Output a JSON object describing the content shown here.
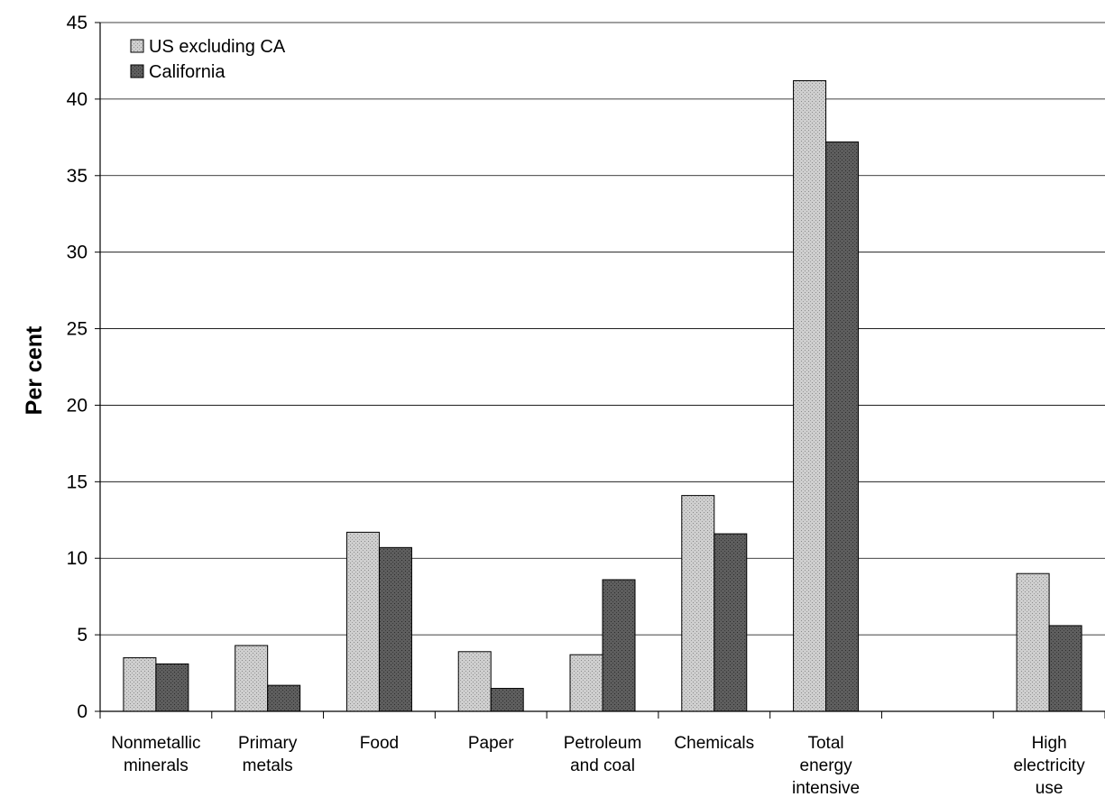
{
  "chart_data": {
    "type": "bar",
    "title": "",
    "xlabel": "",
    "ylabel": "Per cent",
    "ylim": [
      0,
      45
    ],
    "yticks": [
      0,
      5,
      10,
      15,
      20,
      25,
      30,
      35,
      40,
      45
    ],
    "grid": true,
    "legend_position": "top-left",
    "categories": [
      [
        "Nonmetallic",
        "minerals"
      ],
      [
        "Primary",
        "metals"
      ],
      [
        "Food"
      ],
      [
        "Paper"
      ],
      [
        "Petroleum",
        "and coal"
      ],
      [
        "Chemicals"
      ],
      [
        "Total",
        "energy",
        "intensive"
      ],
      [],
      [
        "High",
        "electricity",
        "use"
      ]
    ],
    "series": [
      {
        "name": "US excluding CA",
        "color": "#c8c8c8",
        "values": [
          3.5,
          4.3,
          11.7,
          3.9,
          3.7,
          14.1,
          41.2,
          null,
          9.0
        ]
      },
      {
        "name": "California",
        "color": "#5a5a5a",
        "values": [
          3.1,
          1.7,
          10.7,
          1.5,
          8.6,
          11.6,
          37.2,
          null,
          5.6
        ]
      }
    ]
  }
}
